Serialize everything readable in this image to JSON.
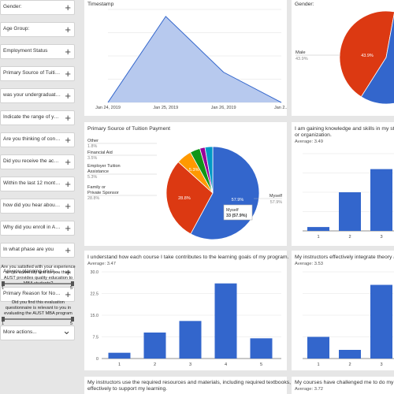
{
  "sidebar": {
    "filters": [
      {
        "label": "Gender:"
      },
      {
        "label": "Age Group:"
      },
      {
        "label": "Employment Status"
      },
      {
        "label": "Primary Source of Tuition..."
      },
      {
        "label": "was your undergraduate ..."
      },
      {
        "label": "Indicate the range of your..."
      },
      {
        "label": "Are you thinking of contin..."
      },
      {
        "label": "Did you receive the acade..."
      },
      {
        "label": "Within the last 12 months..."
      },
      {
        "label": "how did you hear about A..."
      },
      {
        "label": "Why did you enroll in AUS..."
      },
      {
        "label": "In what phase are you"
      },
      {
        "label": "Are you planning on takin..."
      },
      {
        "label": "Primary Reason for Not T..."
      }
    ],
    "sliders": [
      {
        "question": "Are you satisfied with your experience at this university and do you think AUST provides quality education to MBA students?",
        "min": "1",
        "max": "5"
      },
      {
        "question": "Did you find this evaluation questionnaire is relevant to you in evaluating the AUST MBA program",
        "min": "1",
        "max": "5"
      }
    ],
    "more_actions": "More actions..."
  },
  "cards": {
    "timestamp": {
      "title": "Timestamp"
    },
    "gender": {
      "title": "Gender:",
      "legend_label": "Male",
      "legend_value": "43.9%",
      "slice_label": "43.9%"
    },
    "tuition": {
      "title": "Primary Source of Tuition Payment",
      "tooltip_label": "Myself",
      "tooltip_value": "33 (57.9%)"
    },
    "knowledge": {
      "title": "I am gaining knowledge and skills in my studies",
      "title2": "or organization.",
      "average": "Average: 3.49"
    },
    "goals": {
      "title": "I understand how each course I take contributes to the learning goals of my program.",
      "average": "Average: 3.47"
    },
    "integrate": {
      "title": "My instructors effectively integrate theory and",
      "average": "Average: 3.53"
    },
    "resources": {
      "title": "My instructors use the required resources and materials, including required textbooks,",
      "title2": "effectively to support my learning."
    },
    "challenged": {
      "title": "My courses have challenged me to do my best",
      "average": "Average: 3.72"
    }
  },
  "chart_data": [
    {
      "type": "area",
      "title": "Timestamp",
      "x": [
        "Jan 24, 2019",
        "Jan 25, 2019",
        "Jan 26, 2019",
        "Jan 2..."
      ],
      "values": [
        0,
        37,
        13,
        0
      ],
      "ylim": [
        0,
        40
      ],
      "grid": true,
      "color": "#3366cc"
    },
    {
      "type": "pie",
      "title": "Gender:",
      "slices": [
        {
          "name": "Male",
          "value": 43.9,
          "color": "#dc3912"
        },
        {
          "name": "",
          "value": 56.1,
          "color": "#3366cc"
        }
      ]
    },
    {
      "type": "pie",
      "title": "Primary Source of Tuition Payment",
      "slices": [
        {
          "name": "Myself",
          "value": 57.9,
          "label": "57.9%",
          "color": "#3366cc"
        },
        {
          "name": "Family or Private Sponsor",
          "value": 28.8,
          "label": "28.8%",
          "color": "#dc3912"
        },
        {
          "name": "Employer Tuition Assistance",
          "value": 5.3,
          "label": "5.3%",
          "color": "#ff9900"
        },
        {
          "name": "Financial Aid",
          "value": 3.5,
          "label": "3.5%",
          "color": "#109618"
        },
        {
          "name": "Other",
          "value": 1.8,
          "label": "1.8%",
          "color": "#990099"
        },
        {
          "name": "",
          "value": 2.7,
          "label": "",
          "color": "#0099c6"
        }
      ]
    },
    {
      "type": "bar",
      "title": "I am gaining knowledge and skills in my studies or organization.",
      "categories": [
        "1",
        "2",
        "3"
      ],
      "values": [
        1,
        10,
        16
      ],
      "ylim": [
        0,
        20
      ],
      "grid": true,
      "color": "#3366cc"
    },
    {
      "type": "bar",
      "title": "I understand how each course I take contributes to the learning goals of my program.",
      "categories": [
        "1",
        "2",
        "3",
        "4",
        "5"
      ],
      "values": [
        2,
        9,
        13,
        26,
        7
      ],
      "ylim": [
        0,
        30
      ],
      "yticks": [
        "0",
        "7.5",
        "15.0",
        "22.5",
        "30.0"
      ],
      "grid": true,
      "color": "#3366cc"
    },
    {
      "type": "bar",
      "title": "My instructors effectively integrate theory and",
      "categories": [
        "1",
        "2",
        "3"
      ],
      "values": [
        5,
        2,
        17
      ],
      "ylim": [
        0,
        20
      ],
      "grid": true,
      "color": "#3366cc"
    }
  ]
}
